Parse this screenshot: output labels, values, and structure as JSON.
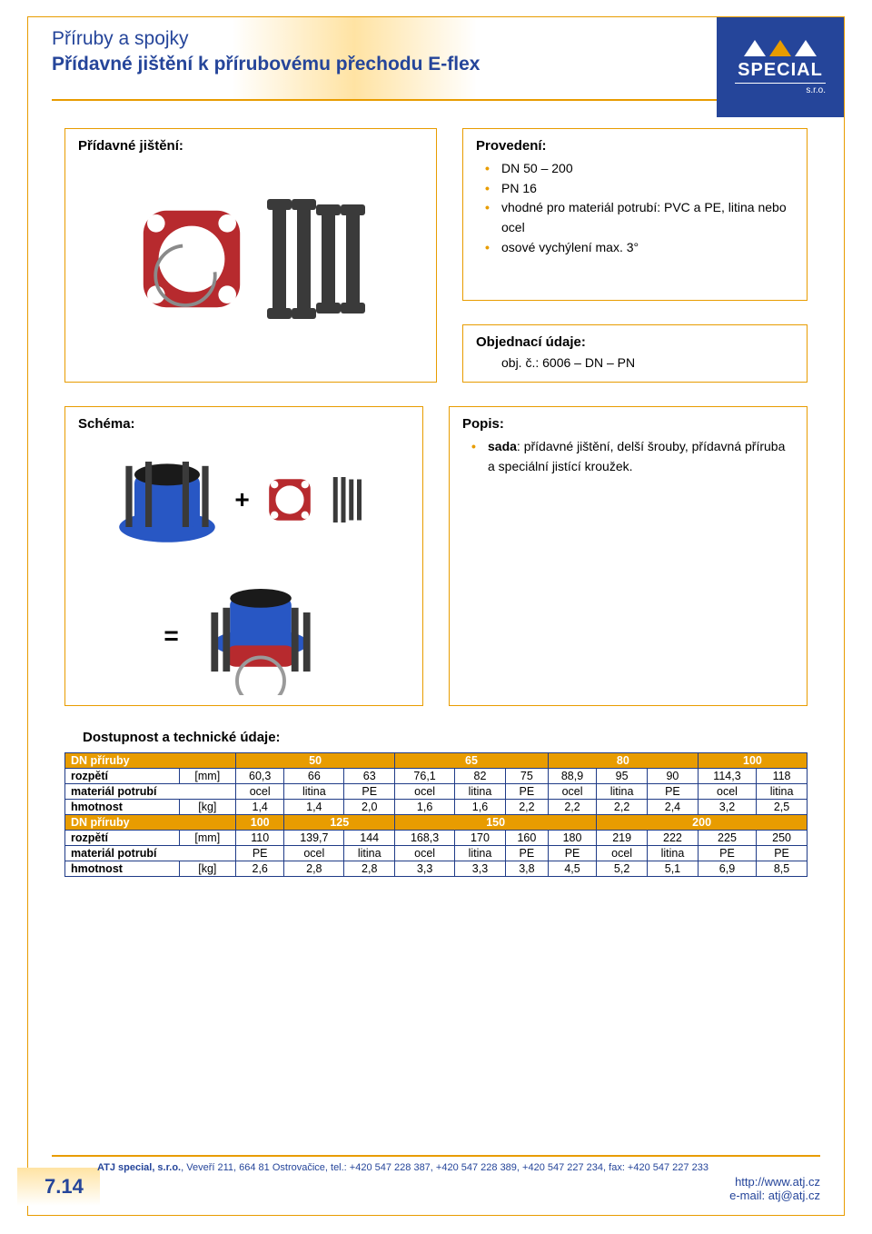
{
  "header": {
    "subtitle": "Příruby a spojky",
    "title": "Přídavné jištění k přírubovému přechodu E-flex"
  },
  "logo": {
    "text": "SPECIAL",
    "sub": "s.r.o."
  },
  "box_jisteni": {
    "title": "Přídavné jištění:"
  },
  "box_provedeni": {
    "title": "Provedení:",
    "items": [
      "DN 50 – 200",
      "PN 16",
      "vhodné pro materiál potrubí: PVC a PE, litina nebo ocel",
      "osové vychýlení max. 3°"
    ]
  },
  "box_objednaci": {
    "title": "Objednací údaje:",
    "line": "obj. č.: 6006 – DN – PN"
  },
  "box_schema": {
    "title": "Schéma:",
    "plus": "+",
    "equals": "="
  },
  "box_popis": {
    "title": "Popis:",
    "bold": "sada",
    "rest": ": přídavné jištění, delší šrouby, přídavná příruba a speciální jistící kroužek."
  },
  "table_title": "Dostupnost a technické údaje:",
  "table": {
    "header_label": "DN příruby",
    "row_labels": {
      "rozpeti": "rozpětí",
      "rozpeti_unit": "[mm]",
      "material": "materiál potrubí",
      "hmotnost": "hmotnost",
      "hmotnost_unit": "[kg]"
    },
    "block1": {
      "spans": [
        3,
        3,
        3,
        2
      ],
      "dn": [
        "50",
        "65",
        "80",
        "100"
      ],
      "rozpeti": [
        "60,3",
        "66",
        "63",
        "76,1",
        "82",
        "75",
        "88,9",
        "95",
        "90",
        "114,3",
        "118"
      ],
      "material": [
        "ocel",
        "litina",
        "PE",
        "ocel",
        "litina",
        "PE",
        "ocel",
        "litina",
        "PE",
        "ocel",
        "litina"
      ],
      "hmotnost": [
        "1,4",
        "1,4",
        "2,0",
        "1,6",
        "1,6",
        "2,2",
        "2,2",
        "2,2",
        "2,4",
        "3,2",
        "2,5"
      ]
    },
    "block2": {
      "spans": [
        1,
        2,
        4,
        4
      ],
      "dn": [
        "100",
        "125",
        "150",
        "200"
      ],
      "rozpeti": [
        "110",
        "139,7",
        "144",
        "168,3",
        "170",
        "160",
        "180",
        "219",
        "222",
        "225",
        "250"
      ],
      "material": [
        "PE",
        "ocel",
        "litina",
        "ocel",
        "litina",
        "PE",
        "PE",
        "ocel",
        "litina",
        "PE",
        "PE"
      ],
      "hmotnost": [
        "2,6",
        "2,8",
        "2,8",
        "3,3",
        "3,3",
        "3,8",
        "4,5",
        "5,2",
        "5,1",
        "6,9",
        "8,5"
      ]
    }
  },
  "footer": {
    "company": "ATJ special, s.r.o.",
    "rest": ", Veveří 211, 664 81 Ostrovačice,  tel.: +420 547 228 387, +420 547 228 389, +420 547 227 234, fax: +420 547 227 233",
    "url": "http://www.atj.cz",
    "mail": "e-mail: atj@atj.cz",
    "page": "7.14"
  },
  "colors": {
    "accent": "#e89c00",
    "brand": "#25459a",
    "flange": "#b72a2e",
    "bolt": "#3a3a3a",
    "coupling": "#2857c4"
  }
}
